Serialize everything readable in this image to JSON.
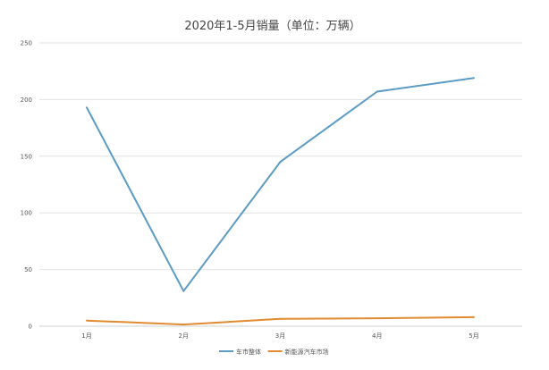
{
  "chart_data": {
    "type": "line",
    "title": "2020年1-5月销量（单位：万辆）",
    "xlabel": "",
    "ylabel": "",
    "categories": [
      "1月",
      "2月",
      "3月",
      "4月",
      "5月"
    ],
    "ylim": [
      0,
      250
    ],
    "yticks": [
      0,
      50,
      100,
      150,
      200,
      250
    ],
    "grid": true,
    "legend_position": "bottom",
    "series": [
      {
        "name": "车市整体",
        "color": "#5b9bc4",
        "values": [
          193,
          31,
          145,
          207,
          219
        ]
      },
      {
        "name": "新能源汽车市场",
        "color": "#e08a32",
        "values": [
          5,
          1.5,
          6.5,
          7,
          8
        ]
      }
    ]
  }
}
